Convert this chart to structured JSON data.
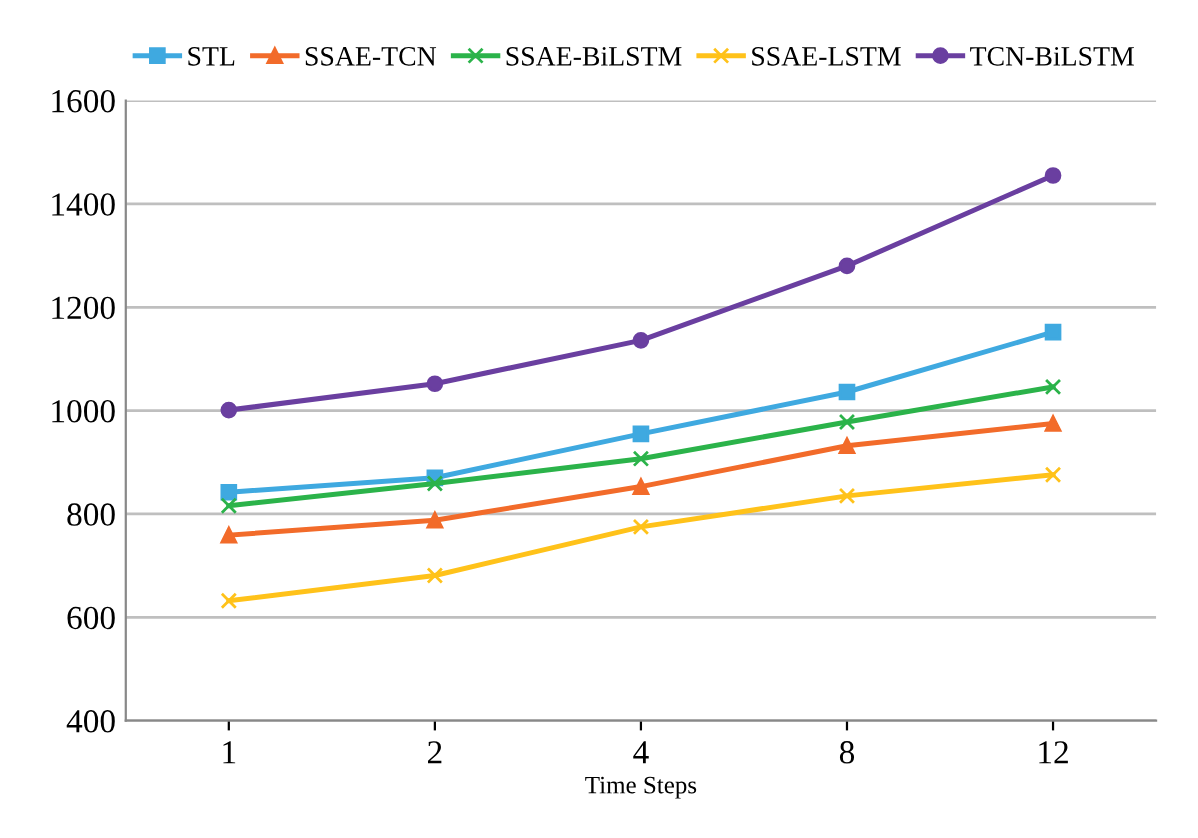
{
  "chart_data": {
    "type": "line",
    "xlabel": "Time Steps",
    "categories": [
      "1",
      "2",
      "4",
      "8",
      "12"
    ],
    "series": [
      {
        "name": "STL",
        "color": "#3fa9e0",
        "marker": "square",
        "values": [
          842,
          870,
          955,
          1036,
          1152
        ]
      },
      {
        "name": "SSAE-TCN",
        "color": "#f26b2a",
        "marker": "triangle",
        "values": [
          759,
          788,
          853,
          932,
          975
        ]
      },
      {
        "name": "SSAE-BiLSTM",
        "color": "#2bb34a",
        "marker": "cross",
        "values": [
          816,
          859,
          907,
          978,
          1046
        ]
      },
      {
        "name": "SSAE-LSTM",
        "color": "#ffc21a",
        "marker": "cross",
        "values": [
          632,
          681,
          775,
          835,
          876
        ]
      },
      {
        "name": "TCN-BiLSTM",
        "color": "#6a3fa0",
        "marker": "circle",
        "values": [
          1001,
          1052,
          1136,
          1280,
          1455
        ]
      }
    ],
    "ylim": [
      400,
      1600
    ],
    "yticks": [
      400,
      600,
      800,
      1000,
      1200,
      1400,
      1600
    ],
    "grid": "y",
    "legend": "top",
    "line_style": "solid"
  }
}
